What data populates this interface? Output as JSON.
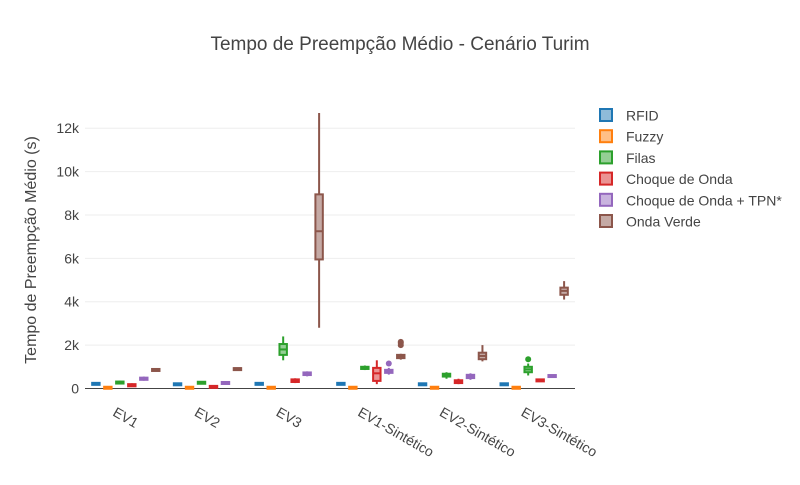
{
  "chart_data": {
    "type": "box",
    "title": "Tempo de Preempção Médio - Cenário Turim",
    "xlabel": "",
    "ylabel": "Tempo de Preempção Médio (s)",
    "categories": [
      "EV1",
      "EV2",
      "EV3",
      "EV1-Sintético",
      "EV2-Sintético",
      "EV3-Sintético"
    ],
    "ylim": [
      -300,
      13300
    ],
    "yticks": [
      0,
      2000,
      4000,
      6000,
      8000,
      10000,
      12000
    ],
    "ytick_labels": [
      "0",
      "2k",
      "4k",
      "6k",
      "8k",
      "10k",
      "12k"
    ],
    "grid": true,
    "legend_position": "top-right",
    "series": [
      {
        "name": "RFID",
        "color": "#1f77b4",
        "fill": "#8fbbd9",
        "boxes": [
          {
            "min": 240,
            "q1": 240,
            "median": 250,
            "q3": 260,
            "max": 260,
            "outliers": []
          },
          {
            "min": 220,
            "q1": 220,
            "median": 230,
            "q3": 240,
            "max": 240,
            "outliers": []
          },
          {
            "min": 240,
            "q1": 240,
            "median": 250,
            "q3": 260,
            "max": 260,
            "outliers": []
          },
          {
            "min": 240,
            "q1": 240,
            "median": 250,
            "q3": 260,
            "max": 260,
            "outliers": []
          },
          {
            "min": 220,
            "q1": 220,
            "median": 230,
            "q3": 240,
            "max": 240,
            "outliers": []
          },
          {
            "min": 220,
            "q1": 220,
            "median": 230,
            "q3": 240,
            "max": 240,
            "outliers": []
          }
        ]
      },
      {
        "name": "Fuzzy",
        "color": "#ff7f0e",
        "fill": "#ffbf86",
        "boxes": [
          {
            "min": 30,
            "q1": 40,
            "median": 60,
            "q3": 80,
            "max": 100,
            "outliers": []
          },
          {
            "min": 30,
            "q1": 40,
            "median": 60,
            "q3": 80,
            "max": 100,
            "outliers": []
          },
          {
            "min": 30,
            "q1": 40,
            "median": 60,
            "q3": 80,
            "max": 100,
            "outliers": []
          },
          {
            "min": 30,
            "q1": 40,
            "median": 60,
            "q3": 80,
            "max": 100,
            "outliers": []
          },
          {
            "min": 30,
            "q1": 40,
            "median": 60,
            "q3": 80,
            "max": 100,
            "outliers": []
          },
          {
            "min": 30,
            "q1": 40,
            "median": 60,
            "q3": 80,
            "max": 100,
            "outliers": []
          }
        ]
      },
      {
        "name": "Filas",
        "color": "#2ca02c",
        "fill": "#95cf95",
        "boxes": [
          {
            "min": 200,
            "q1": 240,
            "median": 280,
            "q3": 320,
            "max": 360,
            "outliers": []
          },
          {
            "min": 270,
            "q1": 280,
            "median": 300,
            "q3": 310,
            "max": 320,
            "outliers": []
          },
          {
            "min": 1300,
            "q1": 1550,
            "median": 1800,
            "q3": 2050,
            "max": 2400,
            "outliers": []
          },
          {
            "min": 850,
            "q1": 900,
            "median": 950,
            "q3": 1000,
            "max": 1060,
            "outliers": []
          },
          {
            "min": 450,
            "q1": 550,
            "median": 600,
            "q3": 680,
            "max": 750,
            "outliers": []
          },
          {
            "min": 600,
            "q1": 750,
            "median": 880,
            "q3": 1000,
            "max": 1150,
            "outliers": [
              1350
            ]
          }
        ]
      },
      {
        "name": "Choque de Onda",
        "color": "#d62728",
        "fill": "#eb9393",
        "boxes": [
          {
            "min": 80,
            "q1": 100,
            "median": 150,
            "q3": 200,
            "max": 240,
            "outliers": []
          },
          {
            "min": 90,
            "q1": 100,
            "median": 110,
            "q3": 120,
            "max": 130,
            "outliers": []
          },
          {
            "min": 250,
            "q1": 300,
            "median": 360,
            "q3": 420,
            "max": 470,
            "outliers": []
          },
          {
            "min": 200,
            "q1": 350,
            "median": 700,
            "q3": 950,
            "max": 1300,
            "outliers": []
          },
          {
            "min": 200,
            "q1": 250,
            "median": 300,
            "q3": 380,
            "max": 450,
            "outliers": []
          },
          {
            "min": 320,
            "q1": 350,
            "median": 390,
            "q3": 420,
            "max": 450,
            "outliers": []
          }
        ]
      },
      {
        "name": "Choque de Onda + TPN*",
        "color": "#9467bd",
        "fill": "#c9b3de",
        "boxes": [
          {
            "min": 360,
            "q1": 400,
            "median": 450,
            "q3": 500,
            "max": 550,
            "outliers": []
          },
          {
            "min": 260,
            "q1": 270,
            "median": 290,
            "q3": 300,
            "max": 310,
            "outliers": []
          },
          {
            "min": 560,
            "q1": 620,
            "median": 680,
            "q3": 740,
            "max": 790,
            "outliers": []
          },
          {
            "min": 640,
            "q1": 720,
            "median": 800,
            "q3": 860,
            "max": 950,
            "outliers": [
              1150
            ]
          },
          {
            "min": 400,
            "q1": 480,
            "median": 560,
            "q3": 630,
            "max": 700,
            "outliers": []
          },
          {
            "min": 550,
            "q1": 570,
            "median": 600,
            "q3": 620,
            "max": 640,
            "outliers": []
          }
        ]
      },
      {
        "name": "Onda Verde",
        "color": "#8c564b",
        "fill": "#c5aaa5",
        "boxes": [
          {
            "min": 840,
            "q1": 860,
            "median": 880,
            "q3": 900,
            "max": 920,
            "outliers": []
          },
          {
            "min": 910,
            "q1": 920,
            "median": 930,
            "q3": 940,
            "max": 950,
            "outliers": []
          },
          {
            "min": 2800,
            "q1": 5950,
            "median": 7250,
            "q3": 8950,
            "max": 12700,
            "outliers": []
          },
          {
            "min": 1330,
            "q1": 1400,
            "median": 1480,
            "q3": 1550,
            "max": 1600,
            "outliers": [
              2000,
              2100,
              2150
            ]
          },
          {
            "min": 1250,
            "q1": 1350,
            "median": 1500,
            "q3": 1650,
            "max": 2000,
            "outliers": []
          },
          {
            "min": 4100,
            "q1": 4320,
            "median": 4500,
            "q3": 4650,
            "max": 4950,
            "outliers": []
          }
        ]
      }
    ]
  }
}
